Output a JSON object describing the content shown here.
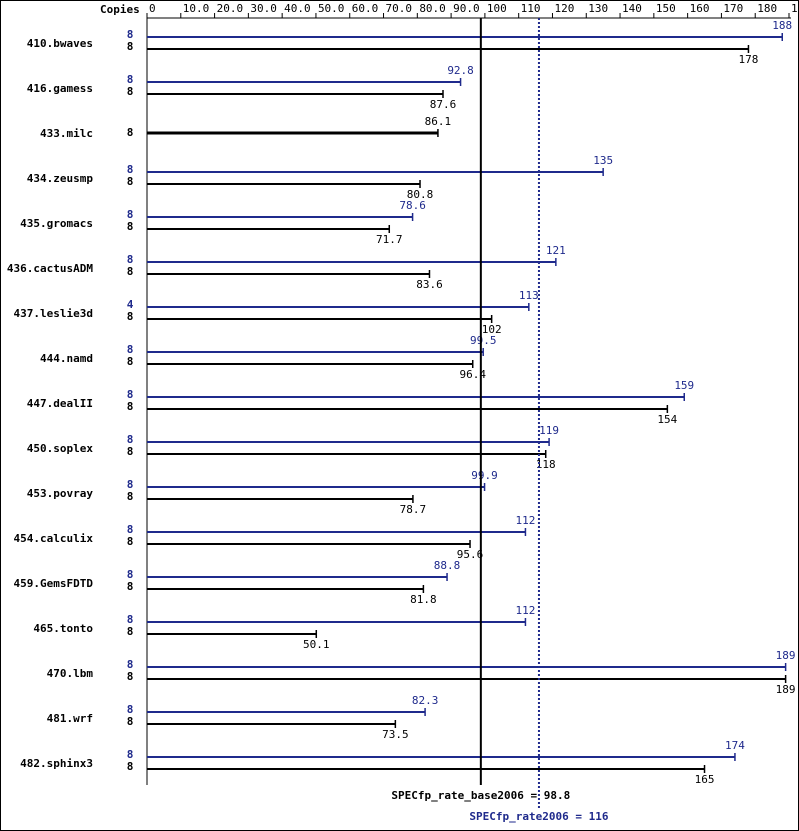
{
  "chart_data": {
    "type": "spec-bar",
    "axis_label": "Copies",
    "categories": [
      "410.bwaves",
      "416.gamess",
      "433.milc",
      "434.zeusmp",
      "435.gromacs",
      "436.cactusADM",
      "437.leslie3d",
      "444.namd",
      "447.dealII",
      "450.soplex",
      "453.povray",
      "454.calculix",
      "459.GemsFDTD",
      "465.tonto",
      "470.lbm",
      "481.wrf",
      "482.sphinx3"
    ],
    "series": [
      {
        "color": "#1f2a8c",
        "copies": [
          8,
          8,
          null,
          8,
          8,
          8,
          4,
          8,
          8,
          8,
          8,
          8,
          8,
          8,
          8,
          8,
          8
        ],
        "values": [
          188,
          92.8,
          null,
          135,
          78.6,
          121,
          113,
          99.5,
          159,
          119,
          99.9,
          112,
          88.8,
          112,
          189,
          82.3,
          174
        ]
      },
      {
        "color": "#000000",
        "copies": [
          8,
          8,
          8,
          8,
          8,
          8,
          8,
          8,
          8,
          8,
          8,
          8,
          8,
          8,
          8,
          8,
          8
        ],
        "values": [
          178,
          87.6,
          86.1,
          80.8,
          71.7,
          83.6,
          102,
          96.4,
          154,
          118,
          78.7,
          95.6,
          81.8,
          50.1,
          189,
          73.5,
          165
        ]
      }
    ],
    "reference_lines": [
      {
        "label": "SPECfp_rate_base2006 = 98.8",
        "value": 98.8,
        "color": "#000000",
        "style": "solid"
      },
      {
        "label": "SPECfp_rate2006 = 116",
        "value": 116,
        "color": "#1f2a8c",
        "style": "dotted"
      }
    ],
    "xlim": [
      0,
      190
    ],
    "xticks": [
      0,
      {
        "value": 10,
        "label": "10.0"
      },
      {
        "value": 20,
        "label": "20.0"
      },
      {
        "value": 30,
        "label": "30.0"
      },
      {
        "value": 40,
        "label": "40.0"
      },
      {
        "value": 50,
        "label": "50.0"
      },
      {
        "value": 60,
        "label": "60.0"
      },
      {
        "value": 70,
        "label": "70.0"
      },
      {
        "value": 80,
        "label": "80.0"
      },
      {
        "value": 90,
        "label": "90.0"
      },
      100,
      110,
      120,
      130,
      140,
      150,
      160,
      170,
      180,
      190
    ]
  }
}
